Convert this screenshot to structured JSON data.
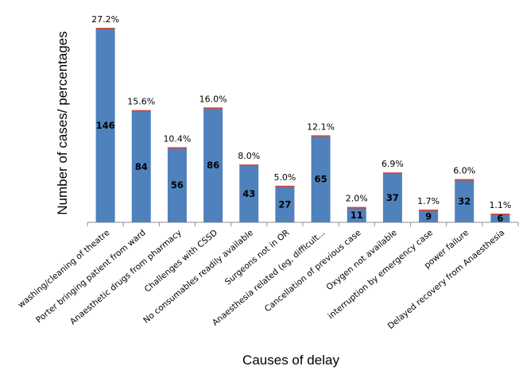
{
  "chart_data": {
    "type": "bar",
    "title": "",
    "xlabel": "Causes of delay",
    "ylabel": "Number of cases/ percentages",
    "ylim": [
      0,
      146
    ],
    "grid": false,
    "legend": "none",
    "bar_color": "#4F81BD",
    "bar_top_accent_color": "#C0504D",
    "categories": [
      "washing/cleaning of theatre",
      "Porter bringing patient from ward",
      "Anaesthetic drugs from pharmacy",
      "Challenges with CSSD",
      "No consumables readily available",
      "Surgeons not in OR",
      "Anaesthesia related (eg, difficult...",
      "Cancellation of previous case",
      "Oxygen not available",
      "interruption by emergency case",
      "power failure",
      "Delayed recovery from Anaesthesia"
    ],
    "series": [
      {
        "values": [
          146,
          84,
          56,
          86,
          43,
          27,
          65,
          11,
          37,
          9,
          32,
          6
        ]
      }
    ],
    "value_labels": [
      "146",
      "84",
      "56",
      "86",
      "43",
      "27",
      "65",
      "11",
      "37",
      "9",
      "32",
      "6"
    ],
    "percent_labels": [
      "27.2%",
      "15.6%",
      "10.4%",
      "16.0%",
      "8.0%",
      "5.0%",
      "12.1%",
      "2.0%",
      "6.9%",
      "1.7%",
      "6.0%",
      "1.1%"
    ]
  }
}
